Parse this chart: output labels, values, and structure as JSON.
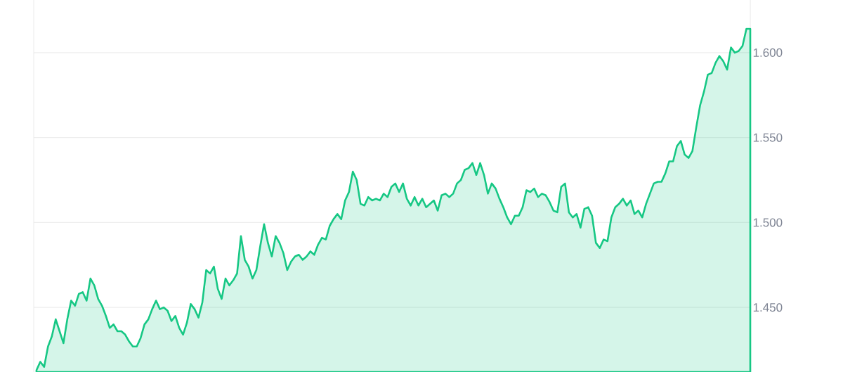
{
  "chart_data": {
    "type": "area",
    "color": "#16c784",
    "categories": [
      null,
      null,
      null,
      null,
      null,
      null,
      null,
      null,
      null,
      null,
      null,
      null,
      null,
      null,
      null,
      null,
      null,
      null,
      null,
      null,
      null,
      null,
      null,
      null,
      null,
      null,
      null,
      null,
      null,
      null,
      null,
      null,
      null,
      null,
      null,
      null,
      null,
      null,
      null,
      null,
      null,
      null,
      null,
      null,
      null,
      null,
      null,
      null,
      null,
      null,
      null,
      null,
      null,
      null,
      null,
      null,
      null,
      null,
      null,
      null,
      null,
      null,
      null,
      null,
      null,
      null,
      null,
      null,
      null,
      null,
      null,
      null,
      null,
      null,
      null,
      null,
      null,
      null,
      null,
      null,
      null,
      null,
      null,
      null,
      null,
      null,
      null,
      null,
      null,
      null,
      null,
      null,
      null,
      null,
      null,
      null,
      null,
      null,
      null,
      null,
      null,
      null,
      null,
      null,
      null,
      null,
      null,
      null,
      null,
      null,
      null,
      null,
      null,
      null,
      null,
      null,
      null,
      null,
      null,
      null,
      null,
      null,
      null,
      null,
      null,
      null,
      null,
      null,
      null,
      null,
      null,
      null,
      null,
      null,
      null,
      null,
      null,
      null,
      null,
      null,
      null,
      null,
      null,
      null,
      null,
      null,
      null,
      null,
      null,
      null,
      null,
      null,
      null,
      null,
      null,
      null,
      null,
      null,
      null,
      null,
      null,
      null,
      null,
      null,
      null,
      null,
      null,
      null,
      null,
      null,
      null,
      null,
      null,
      null,
      null,
      null,
      null,
      null,
      null,
      null,
      null,
      null,
      null,
      null,
      null,
      null
    ],
    "values": [
      1.413,
      1.418,
      1.415,
      1.427,
      1.433,
      1.443,
      1.436,
      1.429,
      1.443,
      1.454,
      1.451,
      1.458,
      1.459,
      1.454,
      1.467,
      1.463,
      1.455,
      1.451,
      1.445,
      1.438,
      1.44,
      1.436,
      1.436,
      1.434,
      1.43,
      1.427,
      1.427,
      1.432,
      1.44,
      1.443,
      1.449,
      1.454,
      1.449,
      1.45,
      1.448,
      1.442,
      1.445,
      1.438,
      1.434,
      1.441,
      1.452,
      1.449,
      1.444,
      1.453,
      1.472,
      1.47,
      1.474,
      1.461,
      1.455,
      1.467,
      1.463,
      1.466,
      1.47,
      1.492,
      1.478,
      1.474,
      1.467,
      1.472,
      1.486,
      1.499,
      1.488,
      1.48,
      1.492,
      1.488,
      1.482,
      1.472,
      1.477,
      1.48,
      1.481,
      1.478,
      1.48,
      1.483,
      1.481,
      1.487,
      1.491,
      1.49,
      1.498,
      1.502,
      1.505,
      1.502,
      1.513,
      1.518,
      1.53,
      1.525,
      1.511,
      1.51,
      1.515,
      1.513,
      1.514,
      1.513,
      1.517,
      1.515,
      1.521,
      1.523,
      1.518,
      1.523,
      1.514,
      1.51,
      1.515,
      1.51,
      1.514,
      1.509,
      1.511,
      1.513,
      1.507,
      1.516,
      1.517,
      1.515,
      1.517,
      1.523,
      1.525,
      1.531,
      1.532,
      1.535,
      1.528,
      1.535,
      1.528,
      1.517,
      1.523,
      1.52,
      1.514,
      1.509,
      1.503,
      1.499,
      1.504,
      1.504,
      1.509,
      1.519,
      1.518,
      1.52,
      1.515,
      1.517,
      1.516,
      1.512,
      1.507,
      1.506,
      1.521,
      1.523,
      1.506,
      1.503,
      1.505,
      1.497,
      1.508,
      1.509,
      1.504,
      1.488,
      1.485,
      1.49,
      1.489,
      1.503,
      1.509,
      1.511,
      1.514,
      1.51,
      1.513,
      1.505,
      1.507,
      1.503,
      1.511,
      1.517,
      1.523,
      1.524,
      1.524,
      1.529,
      1.536,
      1.536,
      1.545,
      1.548,
      1.54,
      1.538,
      1.542,
      1.556,
      1.569,
      1.577,
      1.587,
      1.588,
      1.594,
      1.598,
      1.595,
      1.59,
      1.603,
      1.6,
      1.601,
      1.604,
      1.614,
      1.614
    ],
    "ylim": [
      1.412,
      1.631
    ],
    "yticks": [
      {
        "value": 1.45,
        "label": "1.450"
      },
      {
        "value": 1.5,
        "label": "1.500"
      },
      {
        "value": 1.55,
        "label": "1.550"
      },
      {
        "value": 1.6,
        "label": "1.600"
      }
    ],
    "grid": "y",
    "tick_labels": "y"
  }
}
